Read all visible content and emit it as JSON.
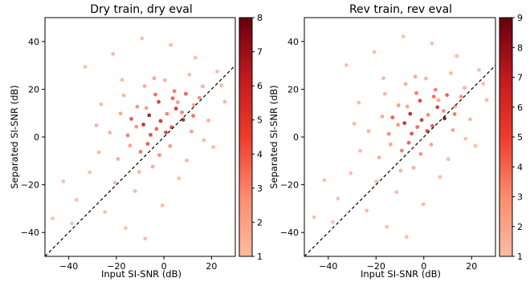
{
  "chart_data": [
    {
      "type": "scatter",
      "title": "Dry train, dry eval",
      "xlabel": "Input SI-SNR (dB)",
      "ylabel": "Separated SI-SNR (dB)",
      "xlim": [
        -50,
        30
      ],
      "ylim": [
        -50,
        50
      ],
      "xticks": [
        -40,
        -20,
        0,
        20
      ],
      "yticks": [
        -40,
        -20,
        0,
        20,
        40
      ],
      "reference_line": "y = x (dashed)",
      "colorbar": {
        "cmap": "Reds",
        "range": [
          1,
          8
        ],
        "ticks": [
          1,
          2,
          3,
          4,
          5,
          6,
          7,
          8
        ]
      },
      "points": [
        [
          -18.2,
          9.8,
          2.2
        ],
        [
          -11.6,
          4.3,
          3.0
        ],
        [
          -7.4,
          12.1,
          2.6
        ],
        [
          -3.1,
          3.4,
          4.1
        ],
        [
          1.3,
          9.7,
          3.4
        ],
        [
          5.8,
          14.6,
          2.7
        ],
        [
          9.2,
          18.1,
          4.3
        ],
        [
          12.5,
          13.4,
          2.2
        ],
        [
          -22.7,
          1.8,
          1.9
        ],
        [
          -14.3,
          -3.6,
          2.4
        ],
        [
          -9.8,
          -6.2,
          3.6
        ],
        [
          -5.6,
          0.9,
          5.1
        ],
        [
          -1.4,
          6.7,
          6.2
        ],
        [
          3.2,
          4.1,
          4.7
        ],
        [
          7.6,
          10.3,
          3.3
        ],
        [
          -26.4,
          13.7,
          1.5
        ],
        [
          -16.9,
          17.4,
          1.8
        ],
        [
          -8.1,
          21.3,
          2.1
        ],
        [
          0.4,
          23.8,
          1.7
        ],
        [
          10.7,
          26.1,
          1.5
        ],
        [
          16.3,
          21.2,
          1.9
        ],
        [
          -31.2,
          -14.8,
          1.3
        ],
        [
          -20.6,
          -19.1,
          1.6
        ],
        [
          -12.1,
          -22.7,
          1.4
        ],
        [
          -4.7,
          -12.4,
          2.0
        ],
        [
          2.6,
          -3.8,
          2.8
        ],
        [
          -36.8,
          -26.3,
          1.2
        ],
        [
          -28.4,
          4.9,
          1.7
        ],
        [
          -13.7,
          7.6,
          4.6
        ],
        [
          -6.2,
          9.1,
          7.2
        ],
        [
          -2.2,
          14.7,
          5.6
        ],
        [
          4.4,
          19.2,
          3.6
        ],
        [
          8.1,
          7.2,
          6.8
        ],
        [
          11.6,
          2.3,
          2.7
        ],
        [
          14.9,
          16.4,
          3.1
        ],
        [
          -19.3,
          -9.2,
          2.1
        ],
        [
          -10.4,
          -14.6,
          1.7
        ],
        [
          -24.8,
          -31.4,
          1.3
        ],
        [
          -16.1,
          -38.2,
          1.2
        ],
        [
          -7.9,
          -42.6,
          1.3
        ],
        [
          -0.7,
          -28.7,
          1.4
        ],
        [
          6.3,
          -17.3,
          1.3
        ],
        [
          -42.3,
          -18.6,
          1.2
        ],
        [
          -33.1,
          29.4,
          1.3
        ],
        [
          -21.4,
          34.8,
          1.4
        ],
        [
          -9.2,
          41.3,
          1.3
        ],
        [
          2.9,
          38.6,
          1.5
        ],
        [
          13.2,
          33.2,
          1.4
        ],
        [
          22.4,
          27.4,
          1.3
        ],
        [
          25.6,
          14.8,
          1.6
        ],
        [
          18.7,
          6.9,
          1.8
        ],
        [
          20.8,
          -4.2,
          1.4
        ],
        [
          -3.6,
          17.8,
          3.9
        ],
        [
          -15.2,
          0.7,
          3.4
        ],
        [
          -6.8,
          -2.9,
          4.4
        ],
        [
          0.8,
          1.9,
          5.3
        ],
        [
          5.1,
          11.9,
          6.1
        ],
        [
          -11.2,
          12.7,
          2.9
        ],
        [
          -4.1,
          24.6,
          2.3
        ],
        [
          -38.7,
          -36.2,
          1.2
        ],
        [
          -46.8,
          -34.1,
          1.2
        ],
        [
          -27.3,
          -6.4,
          1.5
        ],
        [
          9.6,
          -9.8,
          1.6
        ],
        [
          16.8,
          -1.3,
          1.4
        ],
        [
          -17.6,
          23.9,
          1.6
        ],
        [
          24.2,
          21.6,
          1.4
        ],
        [
          -1.9,
          -7.6,
          3.1
        ],
        [
          3.7,
          16.2,
          4.2
        ],
        [
          -8.6,
          5.2,
          6.4
        ],
        [
          12.3,
          8.9,
          3.8
        ]
      ]
    },
    {
      "type": "scatter",
      "title": "Rev train, rev eval",
      "xlabel": "Input SI-SNR (dB)",
      "ylabel": "Separated SI-SNR (dB)",
      "xlim": [
        -50,
        30
      ],
      "ylim": [
        -50,
        50
      ],
      "xticks": [
        -40,
        -20,
        0,
        20
      ],
      "yticks": [
        -40,
        -20,
        0,
        20,
        40
      ],
      "reference_line": "y = x (dashed)",
      "colorbar": {
        "cmap": "Reds",
        "range": [
          1,
          9
        ],
        "ticks": [
          1,
          2,
          3,
          4,
          5,
          6,
          7,
          8,
          9
        ]
      },
      "points": [
        [
          -17.4,
          8.6,
          2.3
        ],
        [
          -10.8,
          5.1,
          3.2
        ],
        [
          -6.9,
          12.8,
          2.5
        ],
        [
          -2.7,
          4.2,
          4.4
        ],
        [
          1.8,
          9.3,
          3.6
        ],
        [
          6.2,
          15.4,
          2.6
        ],
        [
          9.7,
          17.6,
          4.8
        ],
        [
          13.1,
          12.8,
          2.4
        ],
        [
          -23.1,
          2.4,
          2.0
        ],
        [
          -13.9,
          -3.1,
          2.3
        ],
        [
          -9.2,
          -5.7,
          3.8
        ],
        [
          -5.1,
          1.4,
          5.3
        ],
        [
          -0.9,
          7.1,
          6.6
        ],
        [
          3.6,
          4.6,
          4.9
        ],
        [
          8.3,
          10.9,
          3.4
        ],
        [
          -27.2,
          14.4,
          1.4
        ],
        [
          -16.3,
          18.1,
          1.7
        ],
        [
          -7.6,
          22.2,
          2.0
        ],
        [
          0.9,
          24.5,
          1.8
        ],
        [
          11.3,
          26.7,
          1.5
        ],
        [
          17.1,
          20.6,
          2.0
        ],
        [
          -30.6,
          -15.2,
          1.3
        ],
        [
          -19.8,
          -18.7,
          1.6
        ],
        [
          -11.4,
          -23.1,
          1.4
        ],
        [
          -4.3,
          -12.9,
          2.1
        ],
        [
          3.1,
          -3.2,
          2.7
        ],
        [
          -35.9,
          -25.8,
          1.2
        ],
        [
          -29.1,
          5.6,
          1.6
        ],
        [
          -13.1,
          8.2,
          4.8
        ],
        [
          -5.7,
          9.7,
          7.6
        ],
        [
          -1.6,
          15.2,
          5.9
        ],
        [
          4.9,
          19.8,
          3.8
        ],
        [
          8.7,
          7.8,
          8.9
        ],
        [
          12.2,
          2.9,
          2.6
        ],
        [
          15.6,
          16.9,
          3.2
        ],
        [
          -18.7,
          -8.6,
          2.0
        ],
        [
          -9.7,
          -14.1,
          1.8
        ],
        [
          -23.9,
          -30.8,
          1.3
        ],
        [
          -15.4,
          -37.6,
          1.2
        ],
        [
          -7.2,
          -41.9,
          1.3
        ],
        [
          -0.2,
          -28.2,
          1.4
        ],
        [
          6.8,
          -16.7,
          1.3
        ],
        [
          -41.6,
          -18.1,
          1.2
        ],
        [
          -32.4,
          30.1,
          1.3
        ],
        [
          -20.7,
          35.6,
          1.4
        ],
        [
          -8.6,
          42.1,
          1.3
        ],
        [
          3.4,
          39.2,
          1.5
        ],
        [
          13.8,
          33.9,
          1.4
        ],
        [
          23.1,
          28.1,
          1.3
        ],
        [
          26.3,
          15.5,
          1.6
        ],
        [
          19.4,
          7.4,
          1.8
        ],
        [
          21.6,
          -3.7,
          1.4
        ],
        [
          -3.1,
          18.4,
          4.0
        ],
        [
          -14.6,
          1.3,
          3.5
        ],
        [
          -6.3,
          -2.4,
          4.6
        ],
        [
          1.4,
          2.5,
          5.6
        ],
        [
          5.7,
          12.5,
          6.4
        ],
        [
          -10.6,
          13.3,
          3.0
        ],
        [
          -3.5,
          25.3,
          2.4
        ],
        [
          -38.1,
          -35.6,
          1.2
        ],
        [
          -45.9,
          -33.6,
          1.2
        ],
        [
          -26.6,
          -5.8,
          1.5
        ],
        [
          10.2,
          -9.3,
          1.6
        ],
        [
          17.5,
          -0.7,
          1.4
        ],
        [
          -16.9,
          24.6,
          1.6
        ],
        [
          24.9,
          22.3,
          1.4
        ],
        [
          -1.3,
          -7.1,
          3.2
        ],
        [
          4.2,
          16.9,
          4.3
        ],
        [
          -8.1,
          5.8,
          6.9
        ],
        [
          12.9,
          9.6,
          3.9
        ]
      ]
    }
  ]
}
